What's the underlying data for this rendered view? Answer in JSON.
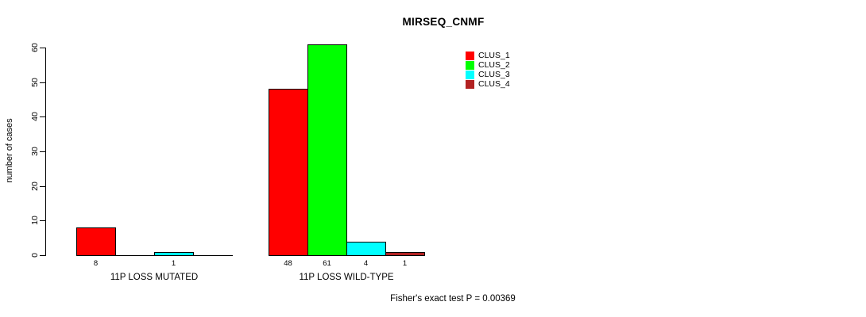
{
  "figure": {
    "background": "#ffffff",
    "text_color": "#000000"
  },
  "chart_data": {
    "type": "bar",
    "title": "MIRSEQ_CNMF",
    "ylabel": "number of cases",
    "xlabel": "",
    "ylim": [
      0,
      60
    ],
    "yticks": [
      0,
      10,
      20,
      30,
      40,
      50,
      60
    ],
    "grid": false,
    "legend_position": "top-right",
    "categories": [
      "11P LOSS MUTATED",
      "11P LOSS WILD-TYPE"
    ],
    "series": [
      {
        "name": "CLUS_1",
        "color": "#ff0000",
        "values": [
          8,
          48
        ]
      },
      {
        "name": "CLUS_2",
        "color": "#00ff00",
        "values": [
          0,
          61
        ]
      },
      {
        "name": "CLUS_3",
        "color": "#00ffff",
        "values": [
          1,
          4
        ]
      },
      {
        "name": "CLUS_4",
        "color": "#b22222",
        "values": [
          0,
          1
        ]
      }
    ],
    "bar_value_labels": [
      [
        "8",
        "",
        "1",
        ""
      ],
      [
        "48",
        "61",
        "4",
        "1"
      ]
    ],
    "annotation": "Fisher's exact test P = 0.00369"
  }
}
